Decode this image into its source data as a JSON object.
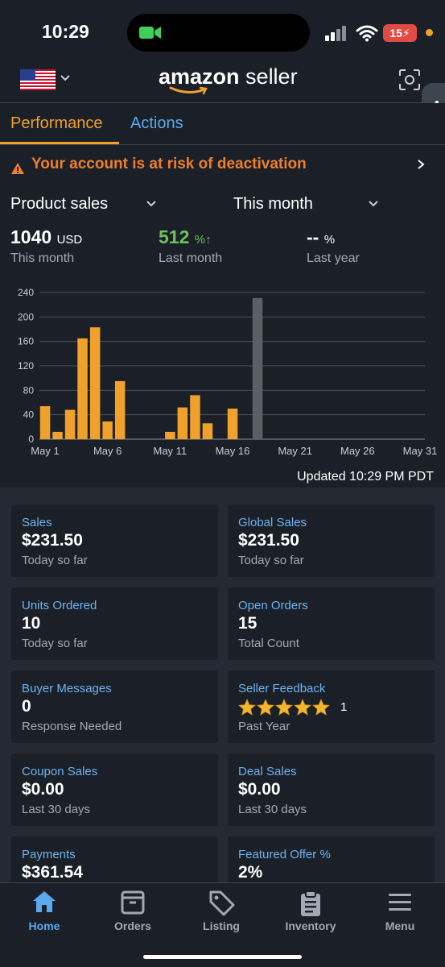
{
  "status_bar": {
    "time": "10:29",
    "battery": "15"
  },
  "header": {
    "logo_main": "amazon",
    "logo_sub": "seller"
  },
  "tabs": [
    {
      "label": "Performance"
    },
    {
      "label": "Actions"
    }
  ],
  "alert": {
    "text": "Your account is at risk of deactivation"
  },
  "selectors": {
    "metric": "Product sales",
    "period": "This month"
  },
  "metrics": [
    {
      "value": "1040",
      "unit": "USD",
      "label": "This month"
    },
    {
      "value": "512",
      "unit": "%",
      "arrow": "↑",
      "label": "Last month"
    },
    {
      "value": "--",
      "unit": "%",
      "label": "Last year"
    }
  ],
  "chart_data": {
    "type": "bar",
    "x": [
      1,
      2,
      3,
      4,
      5,
      6,
      7,
      8,
      9,
      10,
      11,
      12,
      13,
      14,
      15,
      16,
      17,
      18,
      19,
      20,
      21,
      22,
      23,
      24,
      25,
      26,
      27,
      28,
      29,
      30,
      31
    ],
    "values": [
      54,
      12,
      48,
      165,
      183,
      29,
      95,
      0,
      0,
      0,
      12,
      52,
      72,
      26,
      0,
      50,
      0,
      231,
      0,
      0,
      0,
      0,
      0,
      0,
      0,
      0,
      0,
      0,
      0,
      0,
      0
    ],
    "highlight_day": 18,
    "tick_labels": [
      "May 1",
      "May 6",
      "May 11",
      "May 16",
      "May 21",
      "May 26",
      "May 31"
    ],
    "tick_days": [
      1,
      6,
      11,
      16,
      21,
      26,
      31
    ],
    "y_ticks": [
      0,
      40,
      80,
      120,
      160,
      200,
      240
    ],
    "ylim": [
      0,
      240
    ],
    "grid": true,
    "bar_color": "#f0a12b",
    "highlight_color": "#5b5f66"
  },
  "updated_text": "Updated 10:29 PM PDT",
  "cards": [
    {
      "title": "Sales",
      "value": "$231.50",
      "sub": "Today so far"
    },
    {
      "title": "Global Sales",
      "value": "$231.50",
      "sub": "Today so far"
    },
    {
      "title": "Units Ordered",
      "value": "10",
      "sub": "Today so far"
    },
    {
      "title": "Open Orders",
      "value": "15",
      "sub": "Total Count"
    },
    {
      "title": "Buyer Messages",
      "value": "0",
      "sub": "Response Needed"
    },
    {
      "title": "Seller Feedback",
      "stars": 5,
      "count": "1",
      "sub": "Past Year"
    },
    {
      "title": "Coupon Sales",
      "value": "$0.00",
      "sub": "Last 30 days"
    },
    {
      "title": "Deal Sales",
      "value": "$0.00",
      "sub": "Last 30 days"
    },
    {
      "title": "Payments",
      "value": "$361.54",
      "sub": ""
    },
    {
      "title": "Featured Offer %",
      "value": "2%",
      "sub": ""
    }
  ],
  "nav": [
    {
      "label": "Home",
      "icon": "home-icon",
      "active": true
    },
    {
      "label": "Orders",
      "icon": "orders-box-icon",
      "active": false
    },
    {
      "label": "Listing",
      "icon": "tag-icon",
      "active": false
    },
    {
      "label": "Inventory",
      "icon": "clipboard-icon",
      "active": false
    },
    {
      "label": "Menu",
      "icon": "hamburger-menu-icon",
      "active": false
    }
  ],
  "colors": {
    "accent": "#f0a12b",
    "link": "#5aa9ef",
    "alert": "#ee7f2a",
    "positive": "#6ec15a",
    "background": "#1b2028"
  }
}
